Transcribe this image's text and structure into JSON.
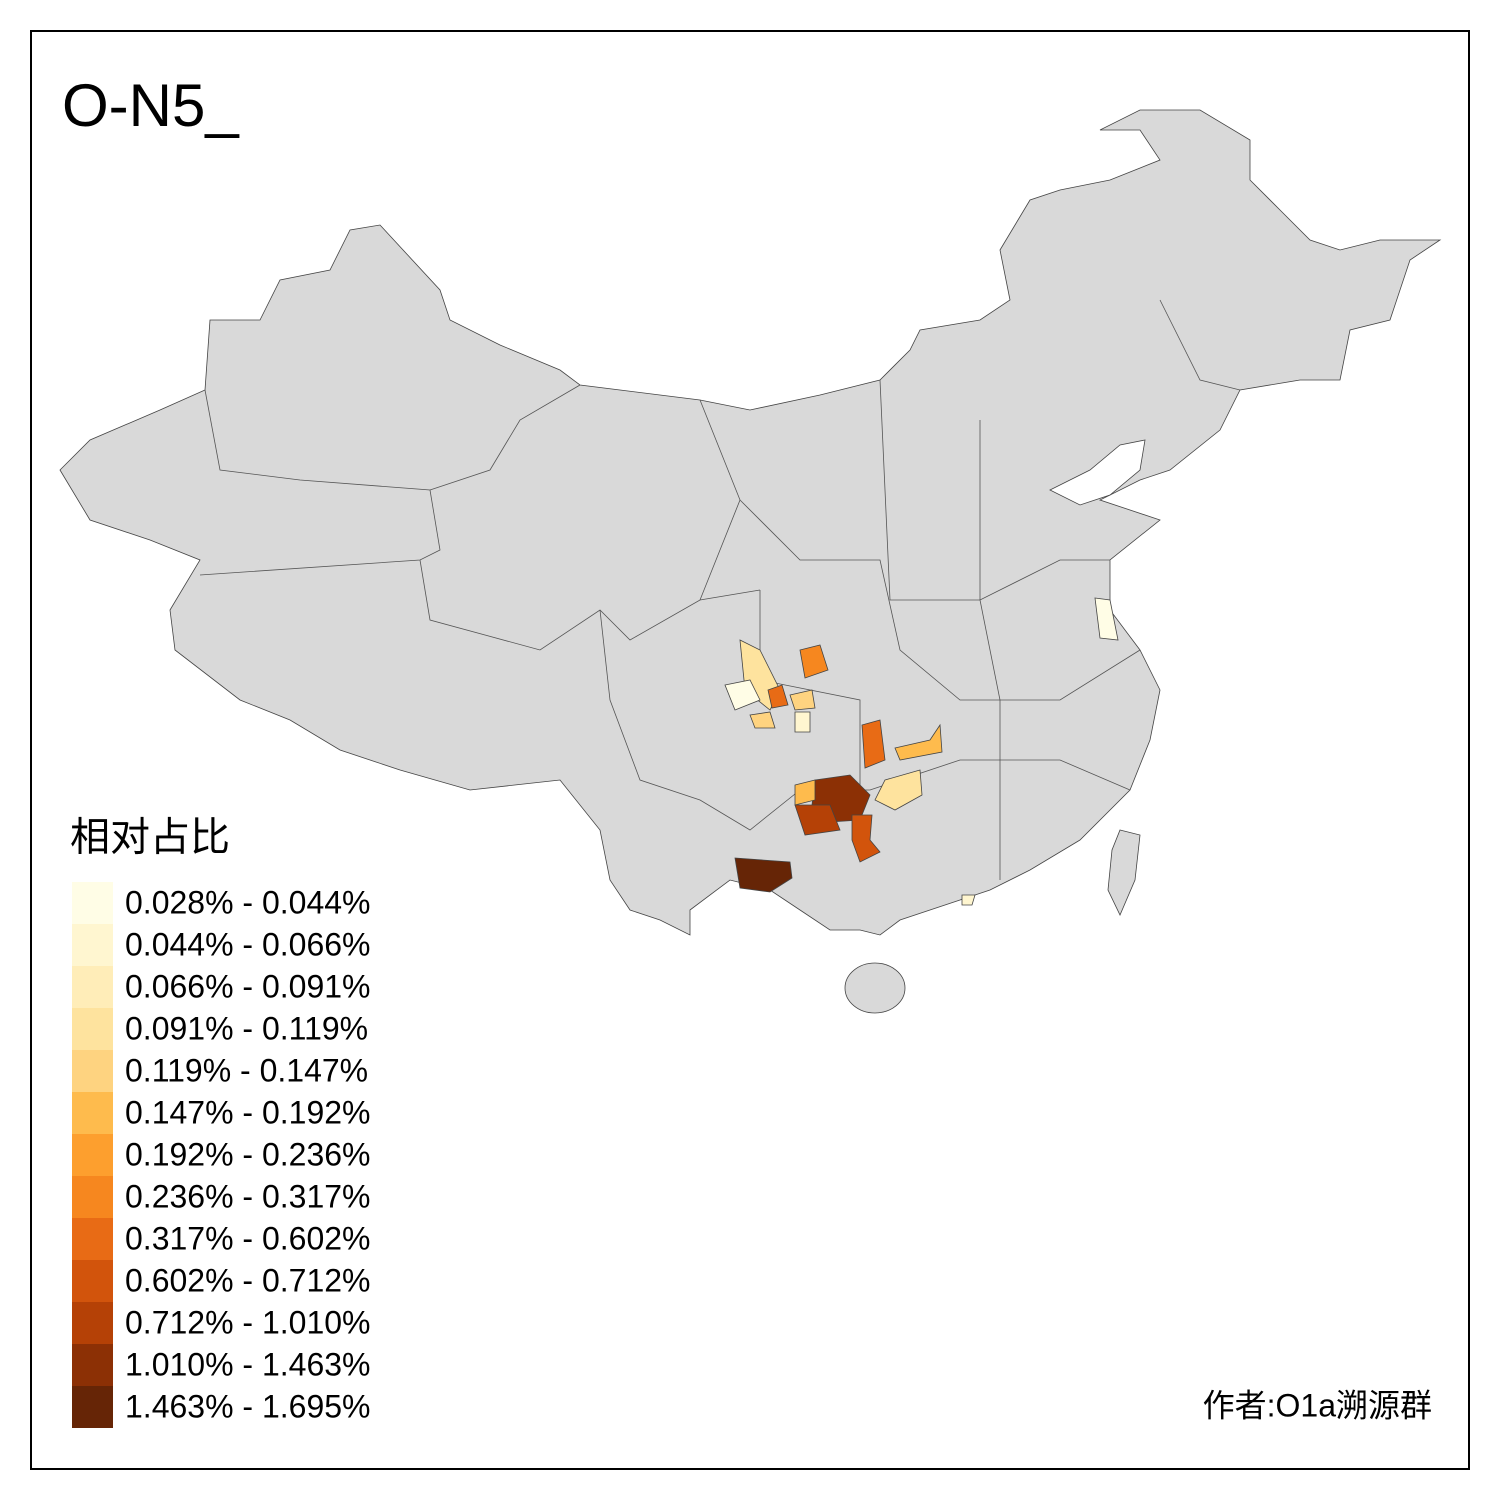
{
  "title": "O-N5_",
  "legend": {
    "title": "相对占比",
    "items": [
      {
        "label": "0.028% - 0.044%",
        "color": "#fffde6"
      },
      {
        "label": "0.044% - 0.066%",
        "color": "#fff6d0"
      },
      {
        "label": "0.066% - 0.091%",
        "color": "#ffedb8"
      },
      {
        "label": "0.091% - 0.119%",
        "color": "#fee39e"
      },
      {
        "label": "0.119% - 0.147%",
        "color": "#fed380"
      },
      {
        "label": "0.147% - 0.192%",
        "color": "#febb4d"
      },
      {
        "label": "0.192% - 0.236%",
        "color": "#fd9f2e"
      },
      {
        "label": "0.236% - 0.317%",
        "color": "#f6871f"
      },
      {
        "label": "0.317% - 0.602%",
        "color": "#e86b15"
      },
      {
        "label": "0.602% - 0.712%",
        "color": "#d2540c"
      },
      {
        "label": "0.712% - 1.010%",
        "color": "#b54106"
      },
      {
        "label": "1.010% - 1.463%",
        "color": "#8c3005"
      },
      {
        "label": "1.463% - 1.695%",
        "color": "#662506"
      }
    ]
  },
  "author": "作者:O1a溯源群"
}
